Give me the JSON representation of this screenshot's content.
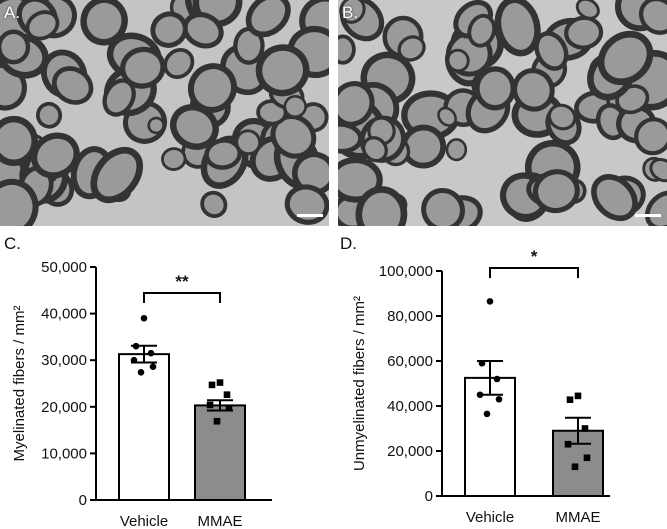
{
  "panels": {
    "a": {
      "label": "A."
    },
    "b": {
      "label": "B."
    },
    "c": {
      "label": "C."
    },
    "d": {
      "label": "D."
    }
  },
  "colors": {
    "vehicle_bar": "#ffffff",
    "mmae_bar": "#8c8c8c",
    "axis": "#000000"
  },
  "chart_data": [
    {
      "type": "bar",
      "panel": "C.",
      "title": "",
      "xlabel": "",
      "ylabel": "Myelinated fibers / mm²",
      "categories": [
        "Vehicle",
        "MMAE"
      ],
      "values": [
        31300,
        20300
      ],
      "sem": [
        1800,
        1100
      ],
      "points": [
        [
          39000,
          33000,
          31500,
          30000,
          28600,
          27400
        ],
        [
          25200,
          24700,
          22600,
          20400,
          19700,
          16900
        ]
      ],
      "ylim": [
        0,
        50000
      ],
      "yticks": [
        "0",
        "10,000",
        "20,000",
        "30,000",
        "40,000",
        "50,000"
      ],
      "significance": "**",
      "grid": false
    },
    {
      "type": "bar",
      "panel": "D.",
      "title": "",
      "xlabel": "",
      "ylabel": "Unmyelinated fibers / mm²",
      "categories": [
        "Vehicle",
        "MMAE"
      ],
      "values": [
        52500,
        29000
      ],
      "sem": [
        7500,
        5800
      ],
      "points": [
        [
          86500,
          59000,
          52000,
          45000,
          43000,
          36500
        ],
        [
          44500,
          42800,
          30000,
          23000,
          17000,
          13000
        ]
      ],
      "ylim": [
        0,
        100000
      ],
      "yticks": [
        "0",
        "20,000",
        "40,000",
        "60,000",
        "80,000",
        "100,000"
      ],
      "significance": "*",
      "grid": false
    }
  ]
}
